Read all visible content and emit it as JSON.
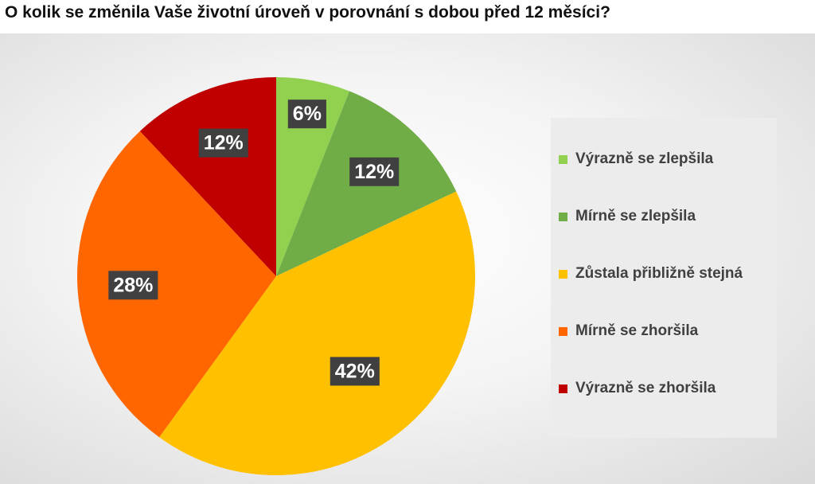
{
  "title": "O kolik se změnila Vaše životní úroveň v porovnání s dobou před 12 měsíci?",
  "chart_data": {
    "type": "pie",
    "title": "O kolik se změnila Vaše životní úroveň v porovnání s dobou před 12 měsíci?",
    "categories": [
      "Výrazně se zlepšila",
      "Mírně se zlepšila",
      "Zůstala přibližně stejná",
      "Mírně se zhoršila",
      "Výrazně se zhoršila"
    ],
    "values": [
      6,
      12,
      42,
      28,
      12
    ],
    "labels": [
      "6%",
      "12%",
      "42%",
      "28%",
      "12%"
    ],
    "colors": [
      "#92d050",
      "#70ad47",
      "#ffc000",
      "#ff6600",
      "#c00000"
    ],
    "legend_position": "right"
  }
}
